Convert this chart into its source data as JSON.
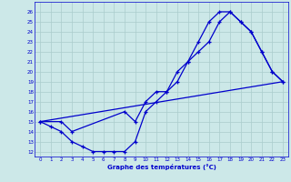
{
  "background_color": "#cce8e8",
  "grid_color": "#aacccc",
  "line_color": "#0000cc",
  "xlabel": "Graphe des températures (°C)",
  "ylim": [
    11.5,
    27
  ],
  "xlim": [
    -0.5,
    23.5
  ],
  "yticks": [
    12,
    13,
    14,
    15,
    16,
    17,
    18,
    19,
    20,
    21,
    22,
    23,
    24,
    25,
    26
  ],
  "xticks": [
    0,
    1,
    2,
    3,
    4,
    5,
    6,
    7,
    8,
    9,
    10,
    11,
    12,
    13,
    14,
    15,
    16,
    17,
    18,
    19,
    20,
    21,
    22,
    23
  ],
  "series1_x": [
    0,
    1,
    2,
    3,
    4,
    5,
    6,
    7,
    8,
    9,
    10,
    11,
    12,
    13,
    14,
    15,
    16,
    17,
    18,
    19,
    20,
    21,
    22,
    23
  ],
  "series1_y": [
    15,
    14.5,
    14,
    13,
    12.5,
    12,
    12,
    12,
    12,
    13,
    16,
    17,
    18,
    19,
    21,
    22,
    23,
    25,
    26,
    25,
    24,
    22,
    20,
    19
  ],
  "series2_x": [
    0,
    2,
    3,
    8,
    9,
    10,
    11,
    12,
    13,
    14,
    15,
    16,
    17,
    18,
    19,
    20,
    21,
    22,
    23
  ],
  "series2_y": [
    15,
    15,
    14,
    16,
    15,
    17,
    18,
    18,
    20,
    21,
    23,
    25,
    26,
    26,
    25,
    24,
    22,
    20,
    19
  ],
  "series3_x": [
    0,
    23
  ],
  "series3_y": [
    15,
    19
  ]
}
